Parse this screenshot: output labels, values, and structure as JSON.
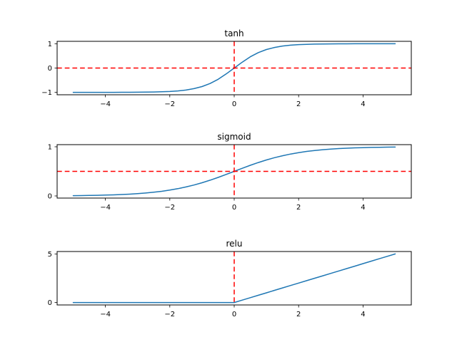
{
  "figure": {
    "background": "#ffffff",
    "curve_color": "#1f77b4",
    "ref_line_color": "#ff0000"
  },
  "chart_data": [
    {
      "type": "line",
      "title": "tanh",
      "x": [
        -5,
        -4.75,
        -4.5,
        -4.25,
        -4,
        -3.75,
        -3.5,
        -3.25,
        -3,
        -2.75,
        -2.5,
        -2.25,
        -2,
        -1.75,
        -1.5,
        -1.25,
        -1,
        -0.75,
        -0.5,
        -0.25,
        0,
        0.25,
        0.5,
        0.75,
        1,
        1.25,
        1.5,
        1.75,
        2,
        2.25,
        2.5,
        2.75,
        3,
        3.25,
        3.5,
        3.75,
        4,
        4.25,
        4.5,
        4.75,
        5
      ],
      "series": [
        {
          "name": "tanh",
          "color": "#1f77b4",
          "values": [
            -0.9999,
            -0.9999,
            -0.9998,
            -0.9996,
            -0.9993,
            -0.9989,
            -0.9982,
            -0.997,
            -0.9951,
            -0.9919,
            -0.9866,
            -0.978,
            -0.964,
            -0.9414,
            -0.9051,
            -0.8483,
            -0.7616,
            -0.6351,
            -0.4621,
            -0.2449,
            0,
            0.2449,
            0.4621,
            0.6351,
            0.7616,
            0.8483,
            0.9051,
            0.9414,
            0.964,
            0.978,
            0.9866,
            0.9919,
            0.9951,
            0.997,
            0.9982,
            0.9989,
            0.9993,
            0.9996,
            0.9998,
            0.9999,
            0.9999
          ]
        }
      ],
      "xlim": [
        -5.5,
        5.5
      ],
      "ylim": [
        -1.1,
        1.1
      ],
      "xticks": [
        -4,
        -2,
        0,
        2,
        4
      ],
      "yticks": [
        -1,
        0,
        1
      ],
      "grid": false,
      "legend": null,
      "ref_lines": {
        "vline_x": 0,
        "hline_y": 0,
        "color": "#ff0000",
        "style": "dashed"
      }
    },
    {
      "type": "line",
      "title": "sigmoid",
      "x": [
        -5,
        -4.75,
        -4.5,
        -4.25,
        -4,
        -3.75,
        -3.5,
        -3.25,
        -3,
        -2.75,
        -2.5,
        -2.25,
        -2,
        -1.75,
        -1.5,
        -1.25,
        -1,
        -0.75,
        -0.5,
        -0.25,
        0,
        0.25,
        0.5,
        0.75,
        1,
        1.25,
        1.5,
        1.75,
        2,
        2.25,
        2.5,
        2.75,
        3,
        3.25,
        3.5,
        3.75,
        4,
        4.25,
        4.5,
        4.75,
        5
      ],
      "series": [
        {
          "name": "sigmoid",
          "color": "#1f77b4",
          "values": [
            0.0067,
            0.0086,
            0.011,
            0.0141,
            0.018,
            0.023,
            0.0293,
            0.0374,
            0.0474,
            0.0601,
            0.0759,
            0.0953,
            0.1192,
            0.148,
            0.1824,
            0.2227,
            0.2689,
            0.3208,
            0.3775,
            0.4378,
            0.5,
            0.5622,
            0.6225,
            0.6792,
            0.7311,
            0.7773,
            0.8176,
            0.852,
            0.8808,
            0.9047,
            0.9241,
            0.9399,
            0.9526,
            0.9626,
            0.9707,
            0.977,
            0.982,
            0.9859,
            0.989,
            0.9914,
            0.9933
          ]
        }
      ],
      "xlim": [
        -5.5,
        5.5
      ],
      "ylim": [
        -0.0427,
        1.0427
      ],
      "xticks": [
        -4,
        -2,
        0,
        2,
        4
      ],
      "yticks": [
        0,
        1
      ],
      "grid": false,
      "legend": null,
      "ref_lines": {
        "vline_x": 0,
        "hline_y": 0.5,
        "color": "#ff0000",
        "style": "dashed"
      }
    },
    {
      "type": "line",
      "title": "relu",
      "x": [
        -5,
        -4.75,
        -4.5,
        -4.25,
        -4,
        -3.75,
        -3.5,
        -3.25,
        -3,
        -2.75,
        -2.5,
        -2.25,
        -2,
        -1.75,
        -1.5,
        -1.25,
        -1,
        -0.75,
        -0.5,
        -0.25,
        0,
        0.25,
        0.5,
        0.75,
        1,
        1.25,
        1.5,
        1.75,
        2,
        2.25,
        2.5,
        2.75,
        3,
        3.25,
        3.5,
        3.75,
        4,
        4.25,
        4.5,
        4.75,
        5
      ],
      "series": [
        {
          "name": "relu",
          "color": "#1f77b4",
          "values": [
            0,
            0,
            0,
            0,
            0,
            0,
            0,
            0,
            0,
            0,
            0,
            0,
            0,
            0,
            0,
            0,
            0,
            0,
            0,
            0,
            0,
            0.25,
            0.5,
            0.75,
            1,
            1.25,
            1.5,
            1.75,
            2,
            2.25,
            2.5,
            2.75,
            3,
            3.25,
            3.5,
            3.75,
            4,
            4.25,
            4.5,
            4.75,
            5
          ]
        }
      ],
      "xlim": [
        -5.5,
        5.5
      ],
      "ylim": [
        -0.25,
        5.25
      ],
      "xticks": [
        -4,
        -2,
        0,
        2,
        4
      ],
      "yticks": [
        0,
        5
      ],
      "grid": false,
      "legend": null,
      "ref_lines": {
        "vline_x": 0,
        "hline_y": null,
        "color": "#ff0000",
        "style": "dashed"
      }
    }
  ]
}
